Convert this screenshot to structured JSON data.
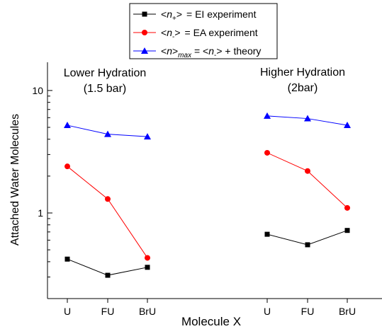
{
  "chart_data": {
    "type": "line",
    "xlabel": "Molecule X",
    "ylabel": "Attached Water Molecules",
    "yscale": "log",
    "ylim": [
      0.2,
      17
    ],
    "y_ticks": [
      {
        "value": 1,
        "label": "1"
      },
      {
        "value": 10,
        "label": "10"
      }
    ],
    "grid": false,
    "legend_position": "top-center",
    "groups": [
      {
        "title_line1": "Lower Hydration",
        "title_line2": "(1.5 bar)",
        "categories": [
          "U",
          "FU",
          "BrU"
        ]
      },
      {
        "title_line1": "Higher Hydration",
        "title_line2": "(2bar)",
        "categories": [
          "U",
          "FU",
          "BrU"
        ]
      }
    ],
    "series": [
      {
        "legend_symbol": "<n+>",
        "legend_text": "= EI experiment",
        "marker": "square",
        "color": "#000000",
        "groups": [
          [
            0.42,
            0.31,
            0.36
          ],
          [
            0.67,
            0.55,
            0.72
          ]
        ]
      },
      {
        "legend_symbol": "<n->",
        "legend_text": "= EA experiment",
        "marker": "circle",
        "color": "#ff0000",
        "groups": [
          [
            2.4,
            1.3,
            0.43
          ],
          [
            3.1,
            2.2,
            1.1
          ]
        ]
      },
      {
        "legend_symbol": "<n>max = <n-> + theory",
        "legend_text": "",
        "marker": "triangle",
        "color": "#0000ff",
        "groups": [
          [
            5.2,
            4.4,
            4.2
          ],
          [
            6.2,
            5.9,
            5.2
          ]
        ]
      }
    ]
  }
}
